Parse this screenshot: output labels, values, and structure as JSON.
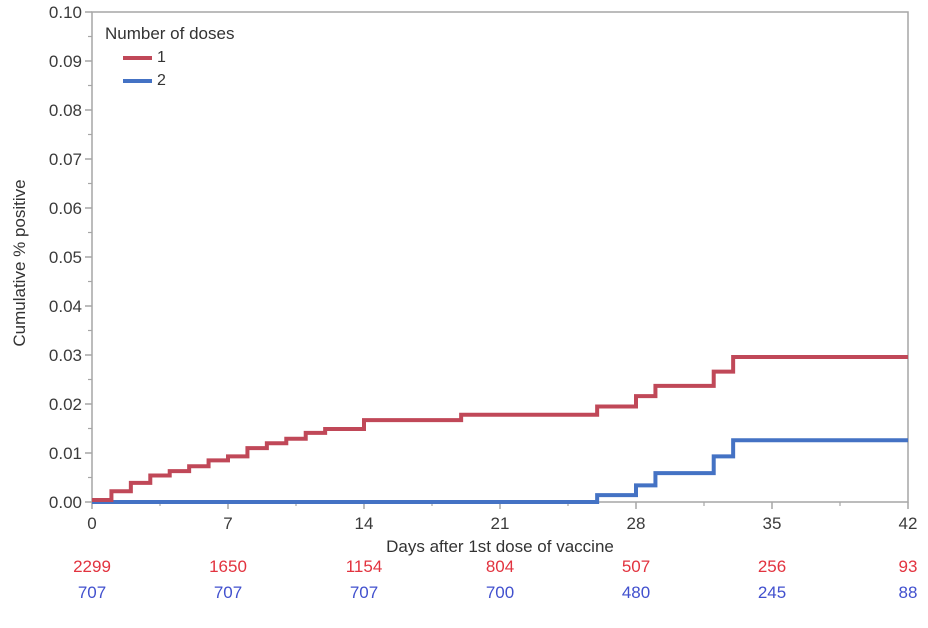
{
  "chart_data": {
    "type": "line",
    "subtype": "step",
    "title": "",
    "xlabel": "Days after 1st dose of vaccine",
    "ylabel": "Cumulative % positive",
    "xlim": [
      0,
      42
    ],
    "ylim": [
      0,
      0.1
    ],
    "xticks": [
      0,
      7,
      14,
      21,
      28,
      35,
      42
    ],
    "yticks": [
      0,
      0.01,
      0.02,
      0.03,
      0.04,
      0.05,
      0.06,
      0.07,
      0.08,
      0.09,
      0.1
    ],
    "ytick_decimals": 2,
    "x_minor_step": 3.5,
    "y_minor_step": 0.005,
    "grid": false,
    "frame": true,
    "frame_color": "#A6A6A6",
    "tick_color": "#A6A6A6",
    "tick_label_color": "#3B3B3B",
    "legend": {
      "title": "Number of doses",
      "position": "top-left-inside"
    },
    "series": [
      {
        "name": "1",
        "color": "#C04858",
        "steps": [
          [
            0,
            0.0004
          ],
          [
            1,
            0.0022
          ],
          [
            2,
            0.0039
          ],
          [
            3,
            0.0054
          ],
          [
            4,
            0.0063
          ],
          [
            5,
            0.0073
          ],
          [
            6,
            0.0085
          ],
          [
            7,
            0.0093
          ],
          [
            8,
            0.011
          ],
          [
            9,
            0.012
          ],
          [
            10,
            0.0129
          ],
          [
            11,
            0.0141
          ],
          [
            12,
            0.0149
          ],
          [
            14,
            0.0167
          ],
          [
            19,
            0.0178
          ],
          [
            26,
            0.0195
          ],
          [
            28,
            0.0216
          ],
          [
            29,
            0.0237
          ],
          [
            32,
            0.0266
          ],
          [
            33,
            0.0296
          ]
        ],
        "end_x": 42
      },
      {
        "name": "2",
        "color": "#4472C4",
        "steps": [
          [
            0,
            0.0
          ],
          [
            26,
            0.0014
          ],
          [
            28,
            0.0034
          ],
          [
            29,
            0.0059
          ],
          [
            32,
            0.0093
          ],
          [
            33,
            0.0126
          ]
        ],
        "end_x": 42
      }
    ],
    "at_risk": {
      "x": [
        0,
        7,
        14,
        21,
        28,
        35,
        42
      ],
      "rows": [
        {
          "series": "1",
          "color": "#E2333F",
          "values": [
            2299,
            1650,
            1154,
            804,
            507,
            256,
            93
          ]
        },
        {
          "series": "2",
          "color": "#4150CE",
          "values": [
            707,
            707,
            707,
            700,
            480,
            245,
            88
          ]
        }
      ]
    }
  }
}
